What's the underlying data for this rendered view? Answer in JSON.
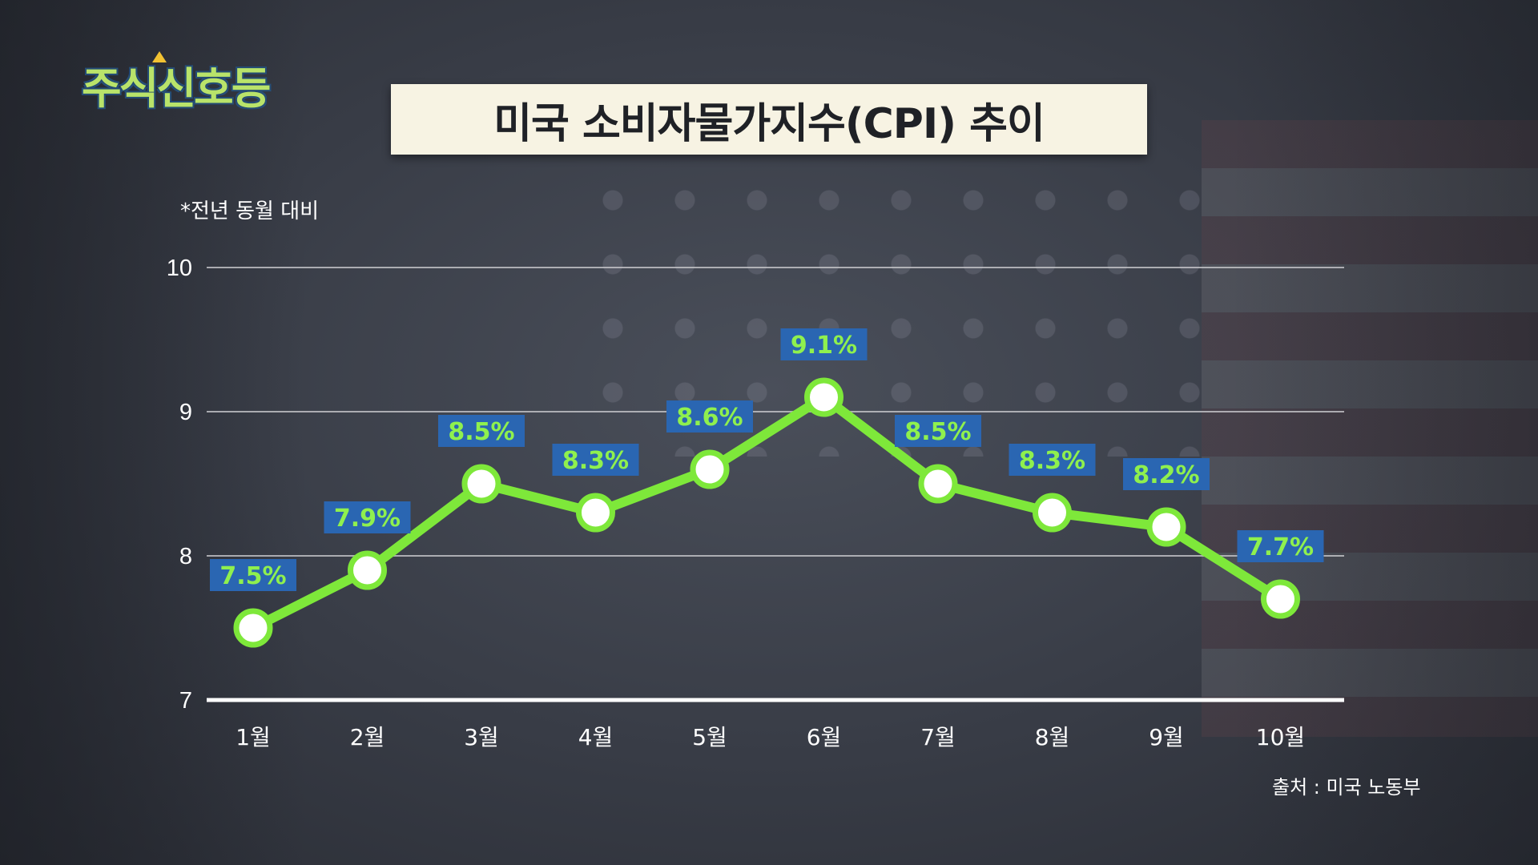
{
  "logo": {
    "text": "주식신호등"
  },
  "title": "미국 소비자물가지수(CPI) 추이",
  "note": "*전년 동월 대비",
  "source": "출처 : 미국 노동부",
  "colors": {
    "line": "#7ee83a",
    "label_bg": "#2a66b2",
    "label_text": "#8ff04e",
    "grid": "#c8c8cc",
    "title_bg": "#f7f3e3"
  },
  "chart_data": {
    "type": "line",
    "categories": [
      "1월",
      "2월",
      "3월",
      "4월",
      "5월",
      "6월",
      "7월",
      "8월",
      "9월",
      "10월"
    ],
    "values": [
      7.5,
      7.9,
      8.5,
      8.3,
      8.6,
      9.1,
      8.5,
      8.3,
      8.2,
      7.7
    ],
    "labels": [
      "7.5%",
      "7.9%",
      "8.5%",
      "8.3%",
      "8.6%",
      "9.1%",
      "8.5%",
      "8.3%",
      "8.2%",
      "7.7%"
    ],
    "yticks": [
      7,
      8,
      9,
      10
    ],
    "ylim": [
      7,
      10
    ],
    "grid": true
  }
}
